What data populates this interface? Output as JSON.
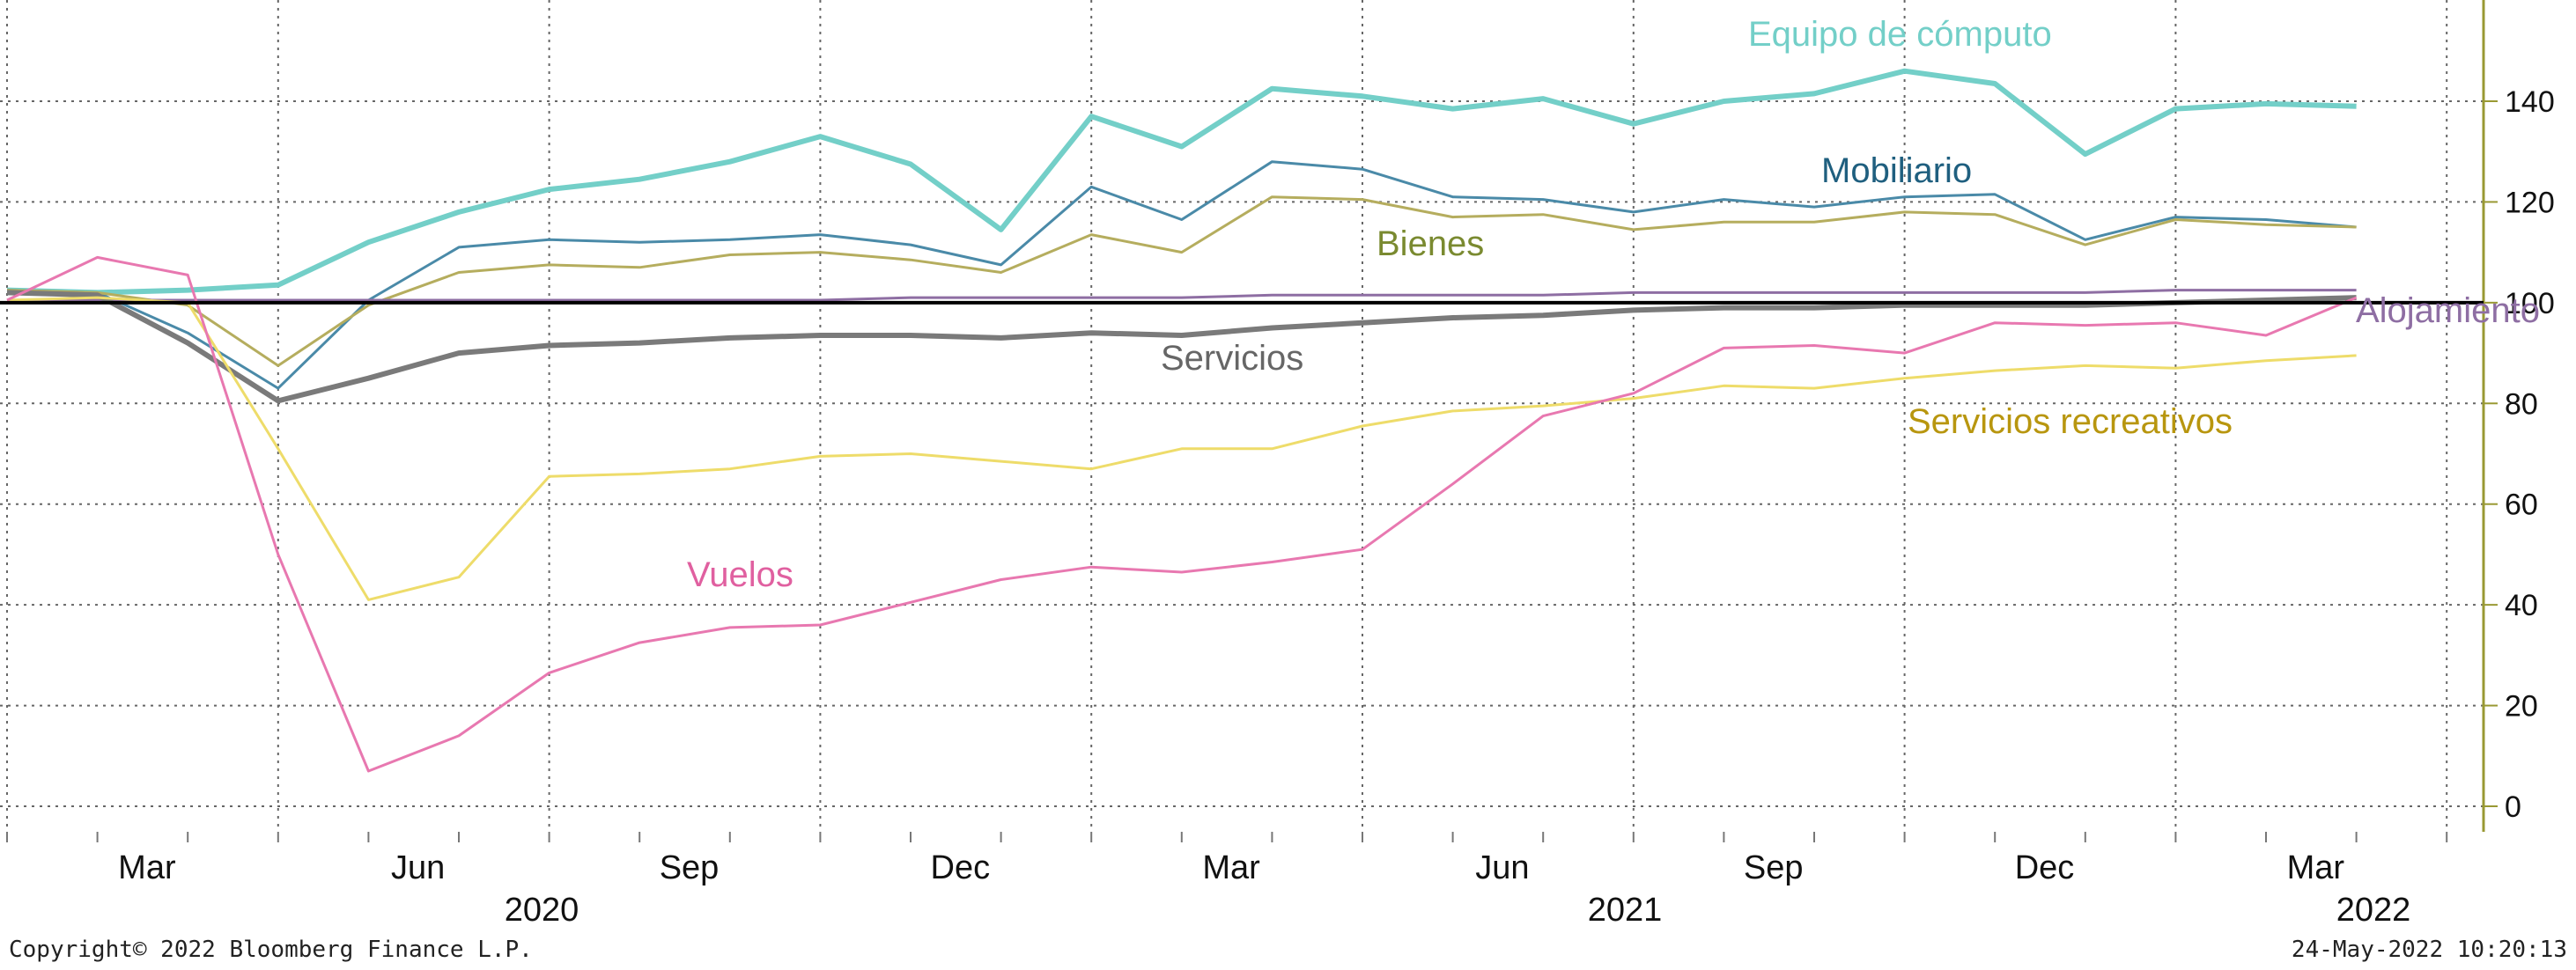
{
  "footer": {
    "copyright": "Copyright© 2022 Bloomberg Finance L.P.",
    "timestamp": "24-May-2022 10:20:13"
  },
  "chart_data": {
    "type": "line",
    "title": "",
    "xlabel": "",
    "ylabel": "",
    "ylim": [
      -7,
      160
    ],
    "y_axis_position": "right",
    "y_ticks": [
      "0",
      "20",
      "40",
      "60",
      "80",
      "100",
      "120",
      "140"
    ],
    "x": [
      "2020-01",
      "2020-02",
      "2020-03",
      "2020-04",
      "2020-05",
      "2020-06",
      "2020-07",
      "2020-08",
      "2020-09",
      "2020-10",
      "2020-11",
      "2020-12",
      "2021-01",
      "2021-02",
      "2021-03",
      "2021-04",
      "2021-05",
      "2021-06",
      "2021-07",
      "2021-08",
      "2021-09",
      "2021-10",
      "2021-11",
      "2021-12",
      "2022-01",
      "2022-02",
      "2022-03"
    ],
    "x_tick_labels": [
      "Mar",
      "Jun",
      "Sep",
      "Dec",
      "Mar",
      "Jun",
      "Sep",
      "Dec",
      "Mar"
    ],
    "x_year_labels": [
      "2020",
      "2021",
      "2022"
    ],
    "grid": true,
    "baseline": 100,
    "series": [
      {
        "name": "Equipo de cómputo",
        "color": "#73cfc8",
        "values": [
          102.5,
          102,
          102.5,
          103.5,
          112,
          118,
          122.5,
          124.5,
          128,
          133,
          127.5,
          114.5,
          137,
          131,
          142.5,
          141,
          138.5,
          140.5,
          135.5,
          140,
          141.5,
          146,
          143.5,
          129.5,
          138.5,
          139.5,
          139
        ]
      },
      {
        "name": "Mobiliario",
        "color": "#4a8aa8",
        "values": [
          102.5,
          102,
          94,
          83,
          100.5,
          111,
          112.5,
          112,
          112.5,
          113.5,
          111.5,
          107.5,
          123,
          116.5,
          128,
          126.5,
          121,
          120.5,
          118,
          120.5,
          119,
          121,
          121.5,
          112.5,
          117,
          116.5,
          115
        ]
      },
      {
        "name": "Bienes",
        "color": "#b5ad5e",
        "values": [
          102.5,
          102,
          99.5,
          87.5,
          99.5,
          106,
          107.5,
          107,
          109.5,
          110,
          108.5,
          106,
          113.5,
          110,
          121,
          120.5,
          117,
          117.5,
          114.5,
          116,
          116,
          118,
          117.5,
          111.5,
          116.5,
          115.5,
          115
        ]
      },
      {
        "name": "Alojamiento",
        "color": "#8e6ea3",
        "values": [
          100.5,
          100.5,
          100.5,
          100.5,
          100.5,
          100.5,
          100.5,
          100.5,
          100.5,
          100.5,
          101,
          101,
          101,
          101,
          101.5,
          101.5,
          101.5,
          101.5,
          102,
          102,
          102,
          102,
          102,
          102,
          102.5,
          102.5,
          102.5
        ]
      },
      {
        "name": "Servicios",
        "color": "#7a7a7a",
        "values": [
          102,
          101.5,
          92,
          80.5,
          85,
          90,
          91.5,
          92,
          93,
          93.5,
          93.5,
          93,
          94,
          93.5,
          95,
          96,
          97,
          97.5,
          98.5,
          99,
          99,
          99.5,
          99.5,
          99.5,
          100,
          100.5,
          101
        ]
      },
      {
        "name": "Servicios recreativos",
        "color": "#eedc6a",
        "values": [
          100.5,
          101,
          100,
          71,
          41,
          45.5,
          65.5,
          66,
          67,
          69.5,
          70,
          68.5,
          67,
          71,
          71,
          75.5,
          78.5,
          79.5,
          81,
          83.5,
          83,
          85,
          86.5,
          87.5,
          87,
          88.5,
          89.5
        ]
      },
      {
        "name": "Vuelos",
        "color": "#e878b0",
        "values": [
          100.5,
          109,
          105.5,
          50,
          7,
          14,
          26.5,
          32.5,
          35.5,
          36,
          40.5,
          45,
          47.5,
          46.5,
          48.5,
          51,
          64,
          77.5,
          82,
          91,
          91.5,
          90,
          96,
          95.5,
          96,
          93.5,
          101
        ]
      }
    ]
  }
}
